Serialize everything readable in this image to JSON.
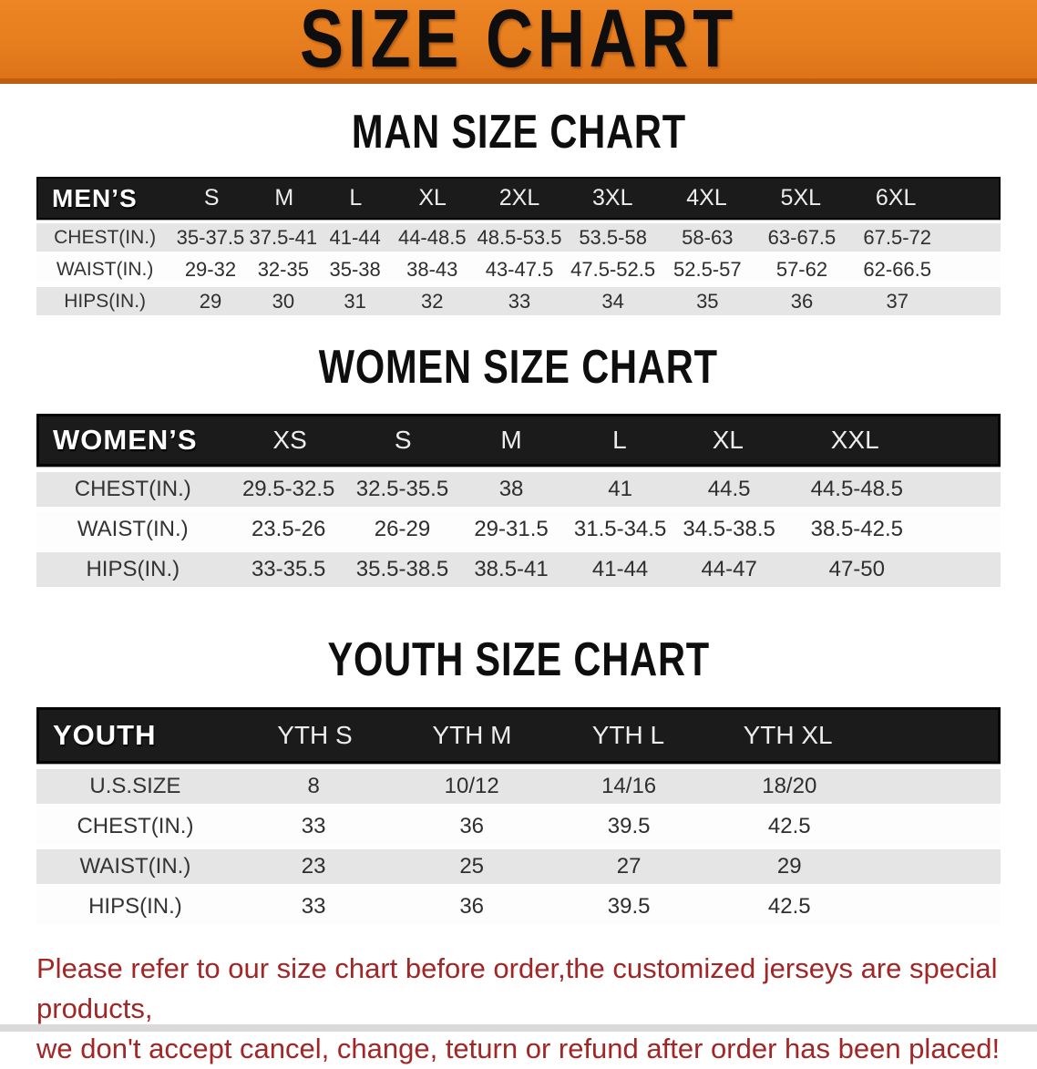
{
  "banner": {
    "title": "SIZE CHART"
  },
  "colors": {
    "banner_bg": "#E67E1F",
    "banner_edge": "#BF5E10",
    "header_bar": "#1B1B1B",
    "row_gray": "#E5E5E5",
    "footer_red": "#A22626"
  },
  "sections": [
    {
      "id": "men",
      "heading": "MAN SIZE CHART",
      "label": "MEN’S",
      "columns": [
        "S",
        "M",
        "L",
        "XL",
        "2XL",
        "3XL",
        "4XL",
        "5XL",
        "6XL"
      ],
      "rows": [
        {
          "label": "CHEST(IN.)",
          "values": [
            "35-37.5",
            "37.5-41",
            "41-44",
            "44-48.5",
            "48.5-53.5",
            "53.5-58",
            "58-63",
            "63-67.5",
            "67.5-72"
          ]
        },
        {
          "label": "WAIST(IN.)",
          "values": [
            "29-32",
            "32-35",
            "35-38",
            "38-43",
            "43-47.5",
            "47.5-52.5",
            "52.5-57",
            "57-62",
            "62-66.5"
          ]
        },
        {
          "label": "HIPS(IN.)",
          "values": [
            "29",
            "30",
            "31",
            "32",
            "33",
            "34",
            "35",
            "36",
            "37"
          ]
        }
      ]
    },
    {
      "id": "women",
      "heading": "WOMEN SIZE CHART",
      "label": "WOMEN’S",
      "columns": [
        "XS",
        "S",
        "M",
        "L",
        "XL",
        "XXL"
      ],
      "rows": [
        {
          "label": "CHEST(IN.)",
          "values": [
            "29.5-32.5",
            "32.5-35.5",
            "38",
            "41",
            "44.5",
            "44.5-48.5"
          ]
        },
        {
          "label": "WAIST(IN.)",
          "values": [
            "23.5-26",
            "26-29",
            "29-31.5",
            "31.5-34.5",
            "34.5-38.5",
            "38.5-42.5"
          ]
        },
        {
          "label": "HIPS(IN.)",
          "values": [
            "33-35.5",
            "35.5-38.5",
            "38.5-41",
            "41-44",
            "44-47",
            "47-50"
          ]
        }
      ]
    },
    {
      "id": "youth",
      "heading": "YOUTH SIZE CHART",
      "label": "YOUTH",
      "columns": [
        "YTH S",
        "YTH M",
        "YTH L",
        "YTH XL"
      ],
      "rows": [
        {
          "label": "U.S.SIZE",
          "values": [
            "8",
            "10/12",
            "14/16",
            "18/20"
          ]
        },
        {
          "label": "CHEST(IN.)",
          "values": [
            "33",
            "36",
            "39.5",
            "42.5"
          ]
        },
        {
          "label": "WAIST(IN.)",
          "values": [
            "23",
            "25",
            "27",
            "29"
          ]
        },
        {
          "label": "HIPS(IN.)",
          "values": [
            "33",
            "36",
            "39.5",
            "42.5"
          ]
        }
      ]
    }
  ],
  "footer": {
    "line1": "Please refer to our size chart before order,the customized jerseys are special products,",
    "line2": "we don't accept cancel, change, teturn or refund after order has been placed!"
  },
  "chart_data": [
    {
      "type": "table",
      "title": "MAN SIZE CHART",
      "columns": [
        "MEN'S",
        "S",
        "M",
        "L",
        "XL",
        "2XL",
        "3XL",
        "4XL",
        "5XL",
        "6XL"
      ],
      "rows": [
        [
          "CHEST(IN.)",
          "35-37.5",
          "37.5-41",
          "41-44",
          "44-48.5",
          "48.5-53.5",
          "53.5-58",
          "58-63",
          "63-67.5",
          "67.5-72"
        ],
        [
          "WAIST(IN.)",
          "29-32",
          "32-35",
          "35-38",
          "38-43",
          "43-47.5",
          "47.5-52.5",
          "52.5-57",
          "57-62",
          "62-66.5"
        ],
        [
          "HIPS(IN.)",
          "29",
          "30",
          "31",
          "32",
          "33",
          "34",
          "35",
          "36",
          "37"
        ]
      ]
    },
    {
      "type": "table",
      "title": "WOMEN SIZE CHART",
      "columns": [
        "WOMEN'S",
        "XS",
        "S",
        "M",
        "L",
        "XL",
        "XXL"
      ],
      "rows": [
        [
          "CHEST(IN.)",
          "29.5-32.5",
          "32.5-35.5",
          "38",
          "41",
          "44.5",
          "44.5-48.5"
        ],
        [
          "WAIST(IN.)",
          "23.5-26",
          "26-29",
          "29-31.5",
          "31.5-34.5",
          "34.5-38.5",
          "38.5-42.5"
        ],
        [
          "HIPS(IN.)",
          "33-35.5",
          "35.5-38.5",
          "38.5-41",
          "41-44",
          "44-47",
          "47-50"
        ]
      ]
    },
    {
      "type": "table",
      "title": "YOUTH SIZE CHART",
      "columns": [
        "YOUTH",
        "YTH S",
        "YTH M",
        "YTH L",
        "YTH XL"
      ],
      "rows": [
        [
          "U.S.SIZE",
          "8",
          "10/12",
          "14/16",
          "18/20"
        ],
        [
          "CHEST(IN.)",
          "33",
          "36",
          "39.5",
          "42.5"
        ],
        [
          "WAIST(IN.)",
          "23",
          "25",
          "27",
          "29"
        ],
        [
          "HIPS(IN.)",
          "33",
          "36",
          "39.5",
          "42.5"
        ]
      ]
    }
  ]
}
